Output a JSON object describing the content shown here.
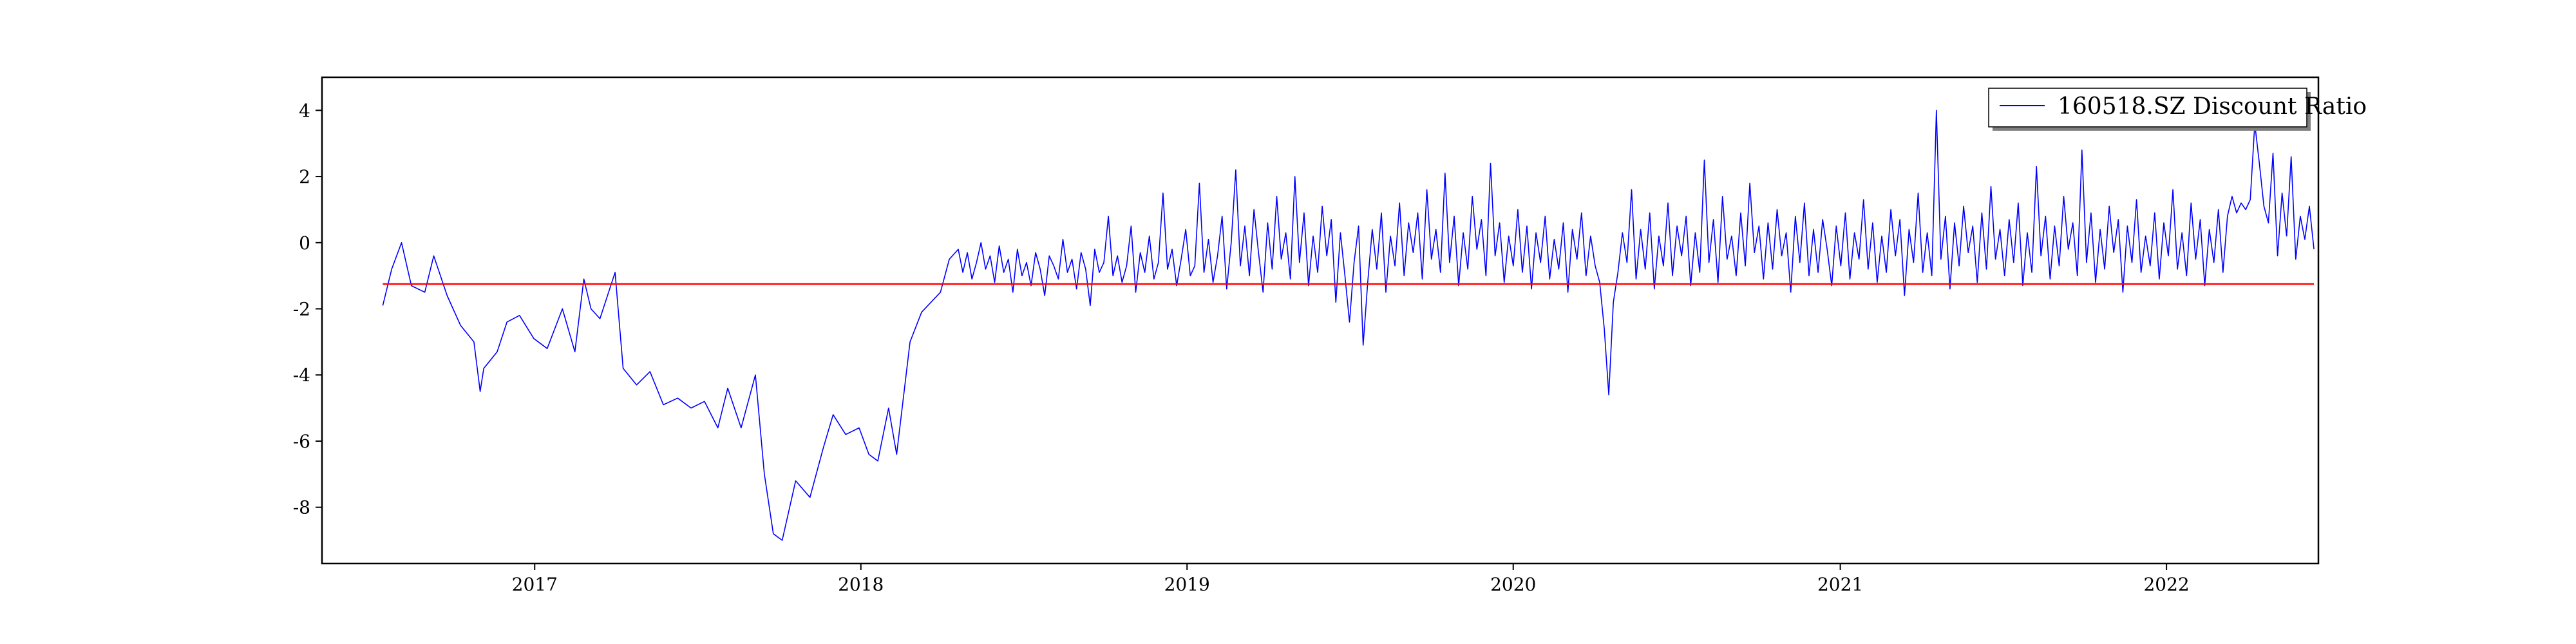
{
  "chart_data": {
    "type": "line",
    "title": "",
    "xlabel": "",
    "ylabel": "",
    "xlim": [
      "2016-05-08",
      "2022-06-20"
    ],
    "ylim": [
      -9.7,
      5.0
    ],
    "x_ticks": [
      {
        "date": "2017-01-01",
        "label": "2017"
      },
      {
        "date": "2018-01-01",
        "label": "2018"
      },
      {
        "date": "2019-01-01",
        "label": "2019"
      },
      {
        "date": "2020-01-01",
        "label": "2020"
      },
      {
        "date": "2021-01-01",
        "label": "2021"
      },
      {
        "date": "2022-01-01",
        "label": "2022"
      }
    ],
    "y_ticks": [
      {
        "value": 4,
        "label": "4"
      },
      {
        "value": 2,
        "label": "2"
      },
      {
        "value": 0,
        "label": "0"
      },
      {
        "value": -2,
        "label": "-2"
      },
      {
        "value": -4,
        "label": "-4"
      },
      {
        "value": -6,
        "label": "-6"
      },
      {
        "value": -8,
        "label": "-8"
      }
    ],
    "grid": false,
    "legend": {
      "position": "top-right"
    },
    "series": [
      {
        "name": "160518.SZ Discount Ratio",
        "color": "#0000ff",
        "points": [
          [
            "2016-07-15",
            -1.9
          ],
          [
            "2016-07-25",
            -0.8
          ],
          [
            "2016-08-05",
            0.0
          ],
          [
            "2016-08-16",
            -1.3
          ],
          [
            "2016-08-31",
            -1.5
          ],
          [
            "2016-09-10",
            -0.4
          ],
          [
            "2016-09-25",
            -1.6
          ],
          [
            "2016-10-10",
            -2.5
          ],
          [
            "2016-10-25",
            -3.0
          ],
          [
            "2016-11-01",
            -4.5
          ],
          [
            "2016-11-05",
            -3.8
          ],
          [
            "2016-11-20",
            -3.3
          ],
          [
            "2016-12-01",
            -2.4
          ],
          [
            "2016-12-15",
            -2.2
          ],
          [
            "2016-12-31",
            -2.9
          ],
          [
            "2017-01-15",
            -3.2
          ],
          [
            "2017-02-01",
            -2.0
          ],
          [
            "2017-02-15",
            -3.3
          ],
          [
            "2017-02-25",
            -1.1
          ],
          [
            "2017-03-05",
            -2.0
          ],
          [
            "2017-03-15",
            -2.3
          ],
          [
            "2017-04-01",
            -0.9
          ],
          [
            "2017-04-10",
            -3.8
          ],
          [
            "2017-04-25",
            -4.3
          ],
          [
            "2017-05-10",
            -3.9
          ],
          [
            "2017-05-25",
            -4.9
          ],
          [
            "2017-06-10",
            -4.7
          ],
          [
            "2017-06-25",
            -5.0
          ],
          [
            "2017-07-10",
            -4.8
          ],
          [
            "2017-07-25",
            -5.6
          ],
          [
            "2017-08-05",
            -4.4
          ],
          [
            "2017-08-20",
            -5.6
          ],
          [
            "2017-09-05",
            -4.0
          ],
          [
            "2017-09-15",
            -7.0
          ],
          [
            "2017-09-25",
            -8.8
          ],
          [
            "2017-10-05",
            -9.0
          ],
          [
            "2017-10-20",
            -7.2
          ],
          [
            "2017-11-05",
            -7.7
          ],
          [
            "2017-11-20",
            -6.2
          ],
          [
            "2017-12-01",
            -5.2
          ],
          [
            "2017-12-15",
            -5.8
          ],
          [
            "2017-12-30",
            -5.6
          ],
          [
            "2018-01-10",
            -6.4
          ],
          [
            "2018-01-20",
            -6.6
          ],
          [
            "2018-02-01",
            -5.0
          ],
          [
            "2018-02-10",
            -6.4
          ],
          [
            "2018-02-25",
            -3.0
          ],
          [
            "2018-03-10",
            -2.1
          ],
          [
            "2018-03-31",
            -1.5
          ],
          [
            "2018-04-10",
            -0.5
          ],
          [
            "2018-04-20",
            -0.2
          ]
        ],
        "volatile_from": "2018-04-20",
        "volatile_to": "2022-06-15",
        "volatile_samples": [
          -0.9,
          -0.3,
          -1.1,
          -0.6,
          0.0,
          -0.8,
          -0.4,
          -1.2,
          -0.1,
          -0.9,
          -0.5,
          -1.5,
          -0.2,
          -1.0,
          -0.6,
          -1.3,
          -0.3,
          -0.8,
          -1.6,
          -0.4,
          -0.7,
          -1.1,
          0.1,
          -0.9,
          -0.5,
          -1.4,
          -0.3,
          -0.8,
          -1.9,
          -0.2,
          -0.9,
          -0.6,
          0.8,
          -1.0,
          -0.4,
          -1.2,
          -0.7,
          0.5,
          -1.5,
          -0.3,
          -0.9,
          0.2,
          -1.1,
          -0.6,
          1.5,
          -0.8,
          -0.2,
          -1.3,
          -0.5,
          0.4,
          -1.0,
          -0.7,
          1.8,
          -0.9,
          0.1,
          -1.2,
          -0.4,
          0.8,
          -1.4,
          0.0,
          2.2,
          -0.7,
          0.5,
          -1.0,
          1.0,
          -0.3,
          -1.5,
          0.6,
          -0.8,
          1.4,
          -0.5,
          0.3,
          -1.1,
          2.0,
          -0.6,
          0.9,
          -1.3,
          0.2,
          -0.9,
          1.1,
          -0.4,
          0.7,
          -1.8,
          0.3,
          -1.0,
          -2.4,
          -0.6,
          0.5,
          -3.1,
          -1.2,
          0.4,
          -0.8,
          0.9,
          -1.5,
          0.2,
          -0.7,
          1.2,
          -1.0,
          0.6,
          -0.3,
          0.9,
          -1.1,
          1.6,
          -0.5,
          0.4,
          -0.9,
          2.1,
          -0.6,
          0.8,
          -1.3,
          0.3,
          -0.8,
          1.4,
          -0.2,
          0.7,
          -1.0,
          2.4,
          -0.4,
          0.6,
          -1.2,
          0.2,
          -0.7,
          1.0,
          -0.9,
          0.5,
          -1.4,
          0.3,
          -0.6,
          0.8,
          -1.1,
          0.1,
          -0.8,
          0.6,
          -1.5,
          0.4,
          -0.5,
          0.9,
          -1.0,
          0.2,
          -0.7,
          -1.2,
          -2.6,
          -4.6,
          -1.8,
          -0.9,
          0.3,
          -0.6,
          1.6,
          -1.1,
          0.4,
          -0.8,
          0.9,
          -1.4,
          0.2,
          -0.7,
          1.2,
          -1.0,
          0.5,
          -0.4,
          0.8,
          -1.3,
          0.3,
          -0.9,
          2.5,
          -0.6,
          0.7,
          -1.2,
          1.4,
          -0.5,
          0.2,
          -1.0,
          0.9,
          -0.7,
          1.8,
          -0.3,
          0.5,
          -1.1,
          0.6,
          -0.8,
          1.0,
          -0.4,
          0.3,
          -1.5,
          0.8,
          -0.6,
          1.2,
          -1.0,
          0.4,
          -0.9,
          0.7,
          -0.2,
          -1.3,
          0.5,
          -0.7,
          0.9,
          -1.1,
          0.3,
          -0.5,
          1.3,
          -0.8,
          0.6,
          -1.2,
          0.2,
          -0.9,
          1.0,
          -0.4,
          0.7,
          -1.6,
          0.4,
          -0.6,
          1.5,
          -0.9,
          0.3,
          -1.0,
          4.0,
          -0.5,
          0.8,
          -1.4,
          0.6,
          -0.7,
          1.1,
          -0.3,
          0.5,
          -1.2,
          0.9,
          -0.8,
          1.7,
          -0.5,
          0.4,
          -1.0,
          0.7,
          -0.6,
          1.2,
          -1.3,
          0.3,
          -0.9,
          2.3,
          -0.4,
          0.8,
          -1.1,
          0.5,
          -0.7,
          1.4,
          -0.2,
          0.6,
          -1.0,
          2.8,
          -0.6,
          0.9,
          -1.2,
          0.4,
          -0.8,
          1.1,
          -0.3,
          0.7,
          -1.5,
          0.5,
          -0.6,
          1.3,
          -0.9,
          0.2,
          -0.7,
          0.9,
          -1.1,
          0.6,
          -0.4,
          1.6,
          -0.8,
          0.3,
          -1.0,
          1.2,
          -0.5,
          0.7,
          -1.3,
          0.4,
          -0.6,
          1.0,
          -0.9,
          0.8,
          1.4,
          0.9,
          1.2,
          1.0,
          1.3,
          3.6,
          2.4,
          1.1,
          0.6,
          2.7,
          -0.4,
          1.5,
          0.2,
          2.6,
          -0.5,
          0.8,
          0.1,
          1.1,
          -0.2
        ]
      },
      {
        "name": "",
        "color": "#ff0000",
        "points": [
          [
            "2016-07-15",
            -1.25
          ],
          [
            "2022-06-15",
            -1.25
          ]
        ]
      }
    ]
  }
}
